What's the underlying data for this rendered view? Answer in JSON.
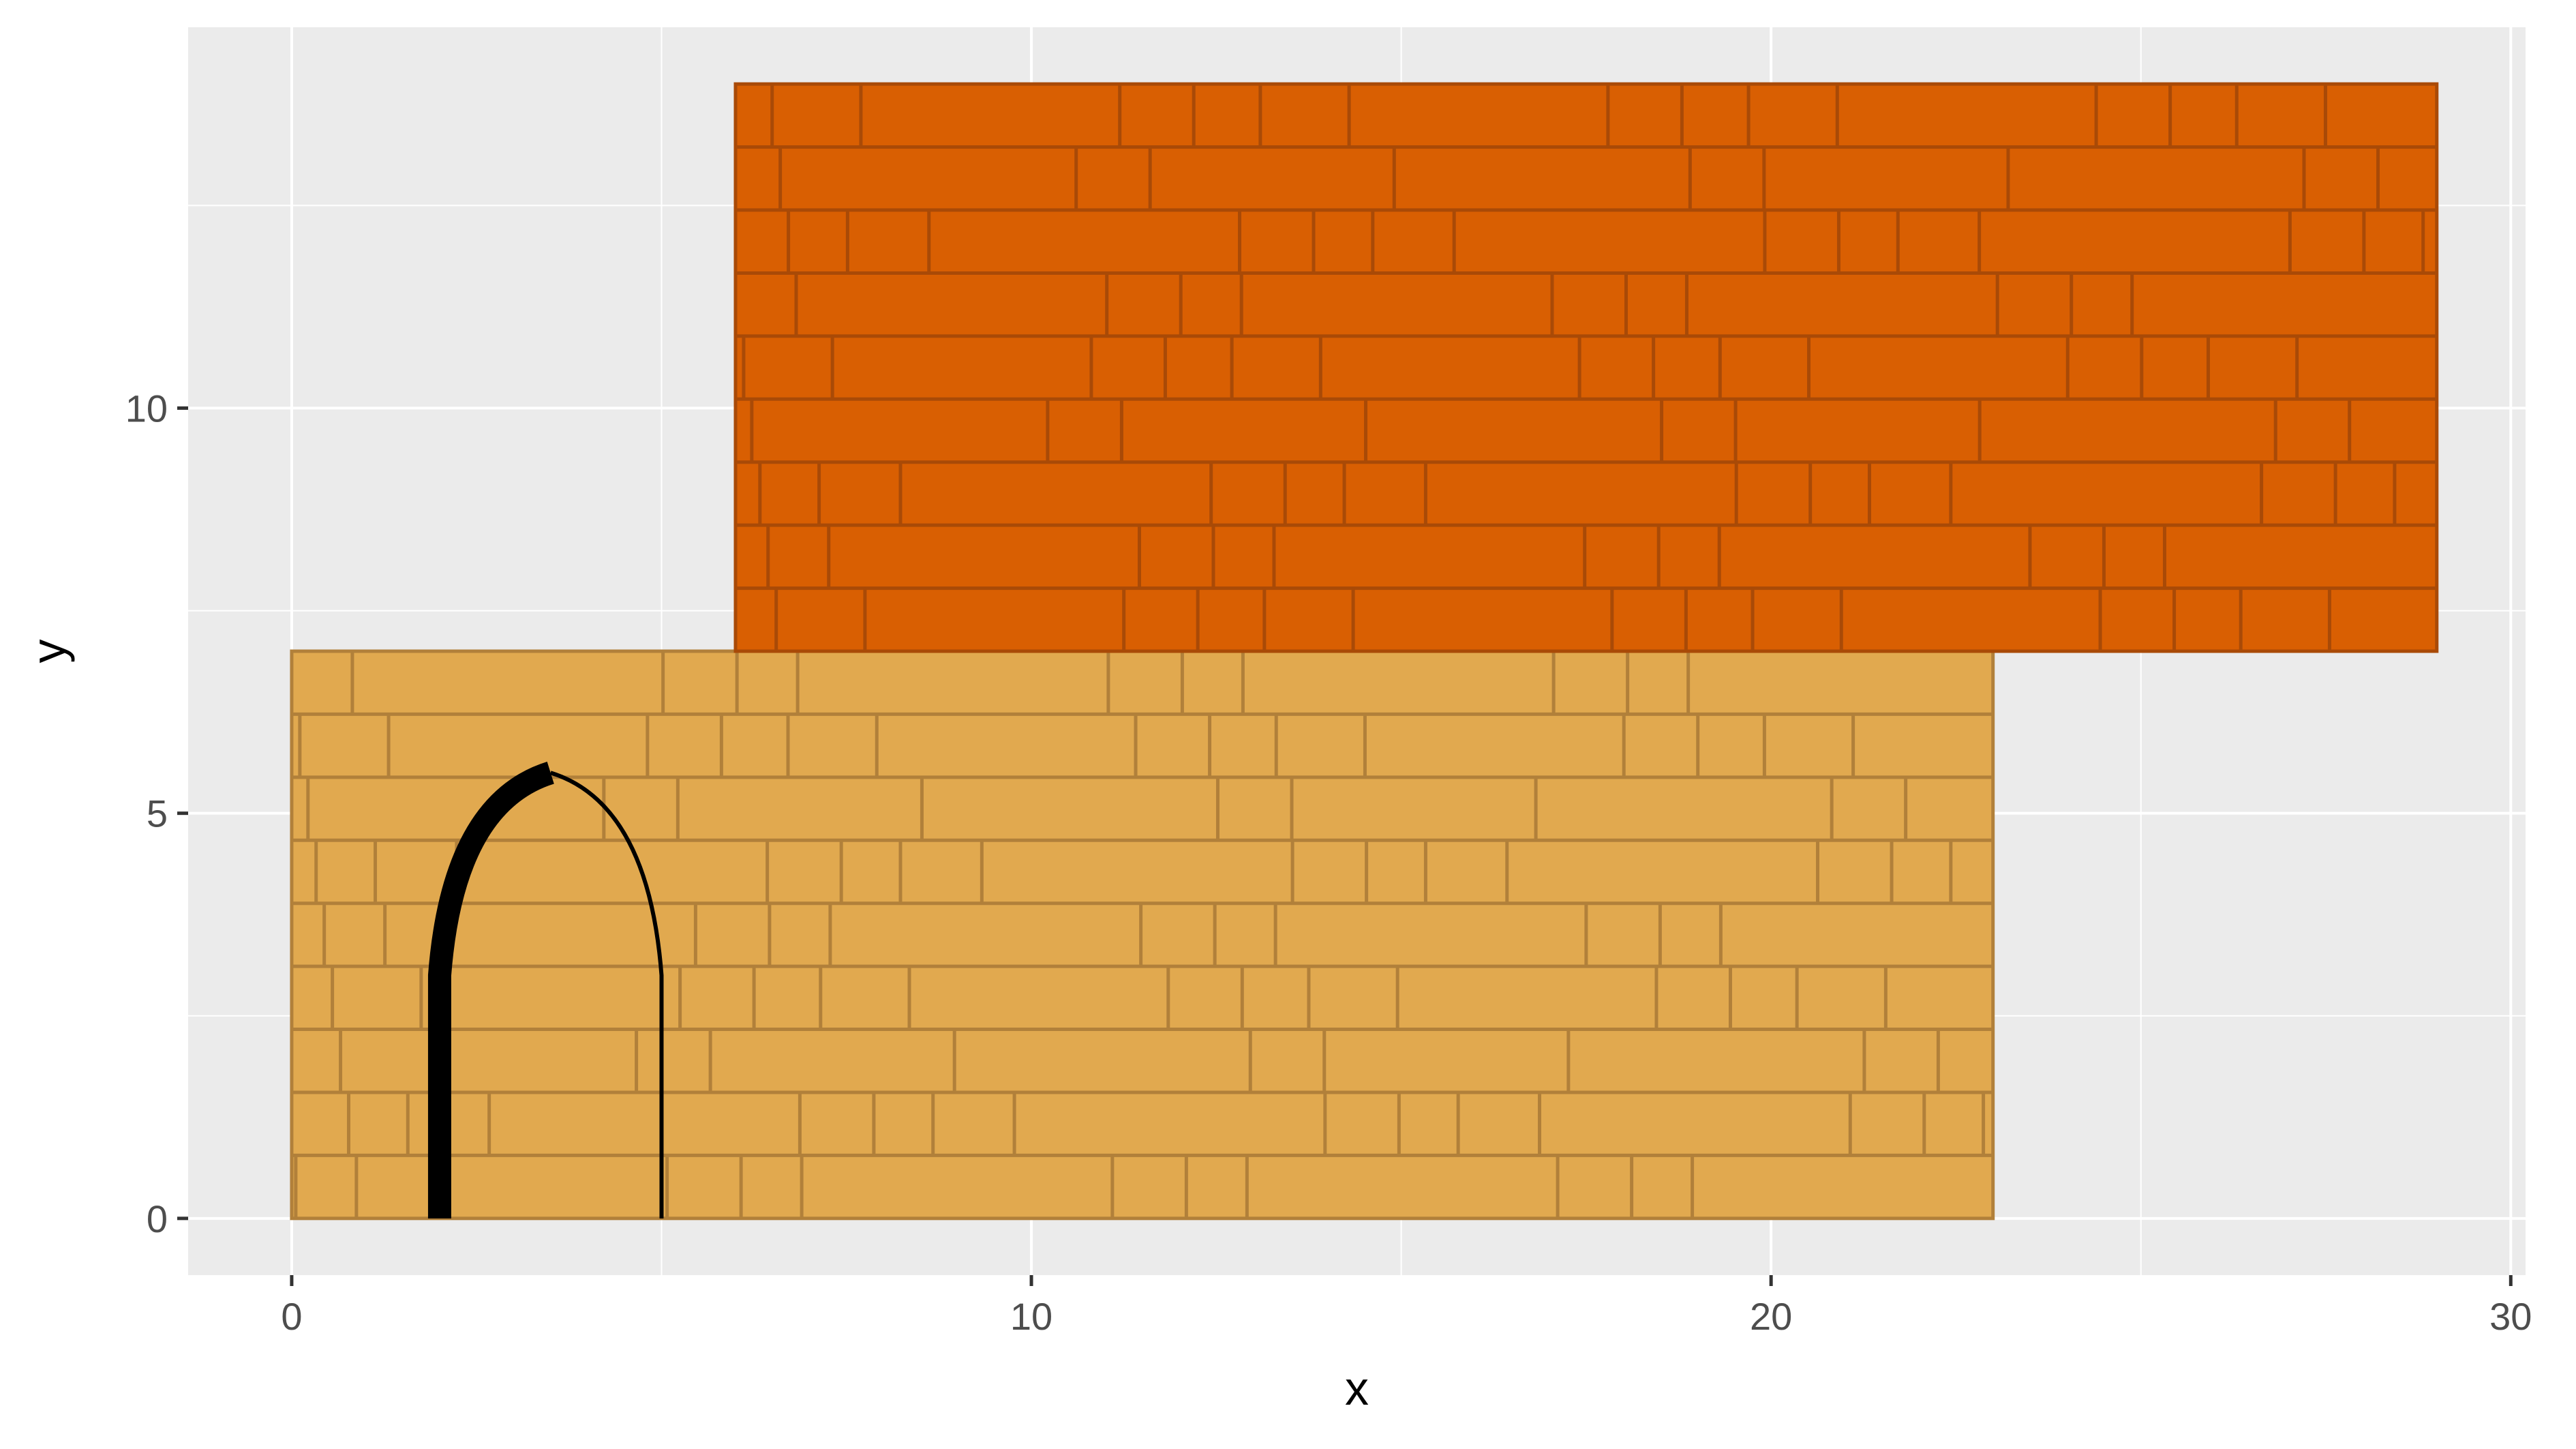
{
  "chart_data": {
    "type": "other",
    "subtype": "brick-wall-rectangles",
    "xlabel": "x",
    "ylabel": "y",
    "xlim": [
      -1.4,
      30.2
    ],
    "ylim": [
      -0.7,
      14.7
    ],
    "x_ticks": [
      0,
      10,
      20,
      30
    ],
    "x_tick_labels": [
      "0",
      "10",
      "20",
      "30"
    ],
    "y_ticks": [
      0,
      5,
      10
    ],
    "y_tick_labels": [
      "0",
      "5",
      "10"
    ],
    "x_minor_breaks": [
      5,
      15,
      25
    ],
    "y_minor_breaks": [
      2.5,
      7.5,
      12.5
    ],
    "grid": true,
    "panel_background": "#ebebeb",
    "grid_color": "#ffffff",
    "walls": [
      {
        "xmin": 0,
        "xmax": 23,
        "ymin": 0,
        "ymax": 7,
        "fill": "#e1a94f",
        "mortar": "#b1803a",
        "course_height": 0.778
      },
      {
        "xmin": 6,
        "xmax": 29,
        "ymin": 7,
        "ymax": 14,
        "fill": "#d95f02",
        "mortar": "#a94a07",
        "course_height": 0.778
      }
    ],
    "arch": {
      "left_x": 2,
      "right_x": 5,
      "spring_y": 3,
      "apex_x": 3.5,
      "apex_y": 5.5,
      "left_stroke": "thick",
      "right_stroke": "thin",
      "color": "#000000"
    }
  }
}
